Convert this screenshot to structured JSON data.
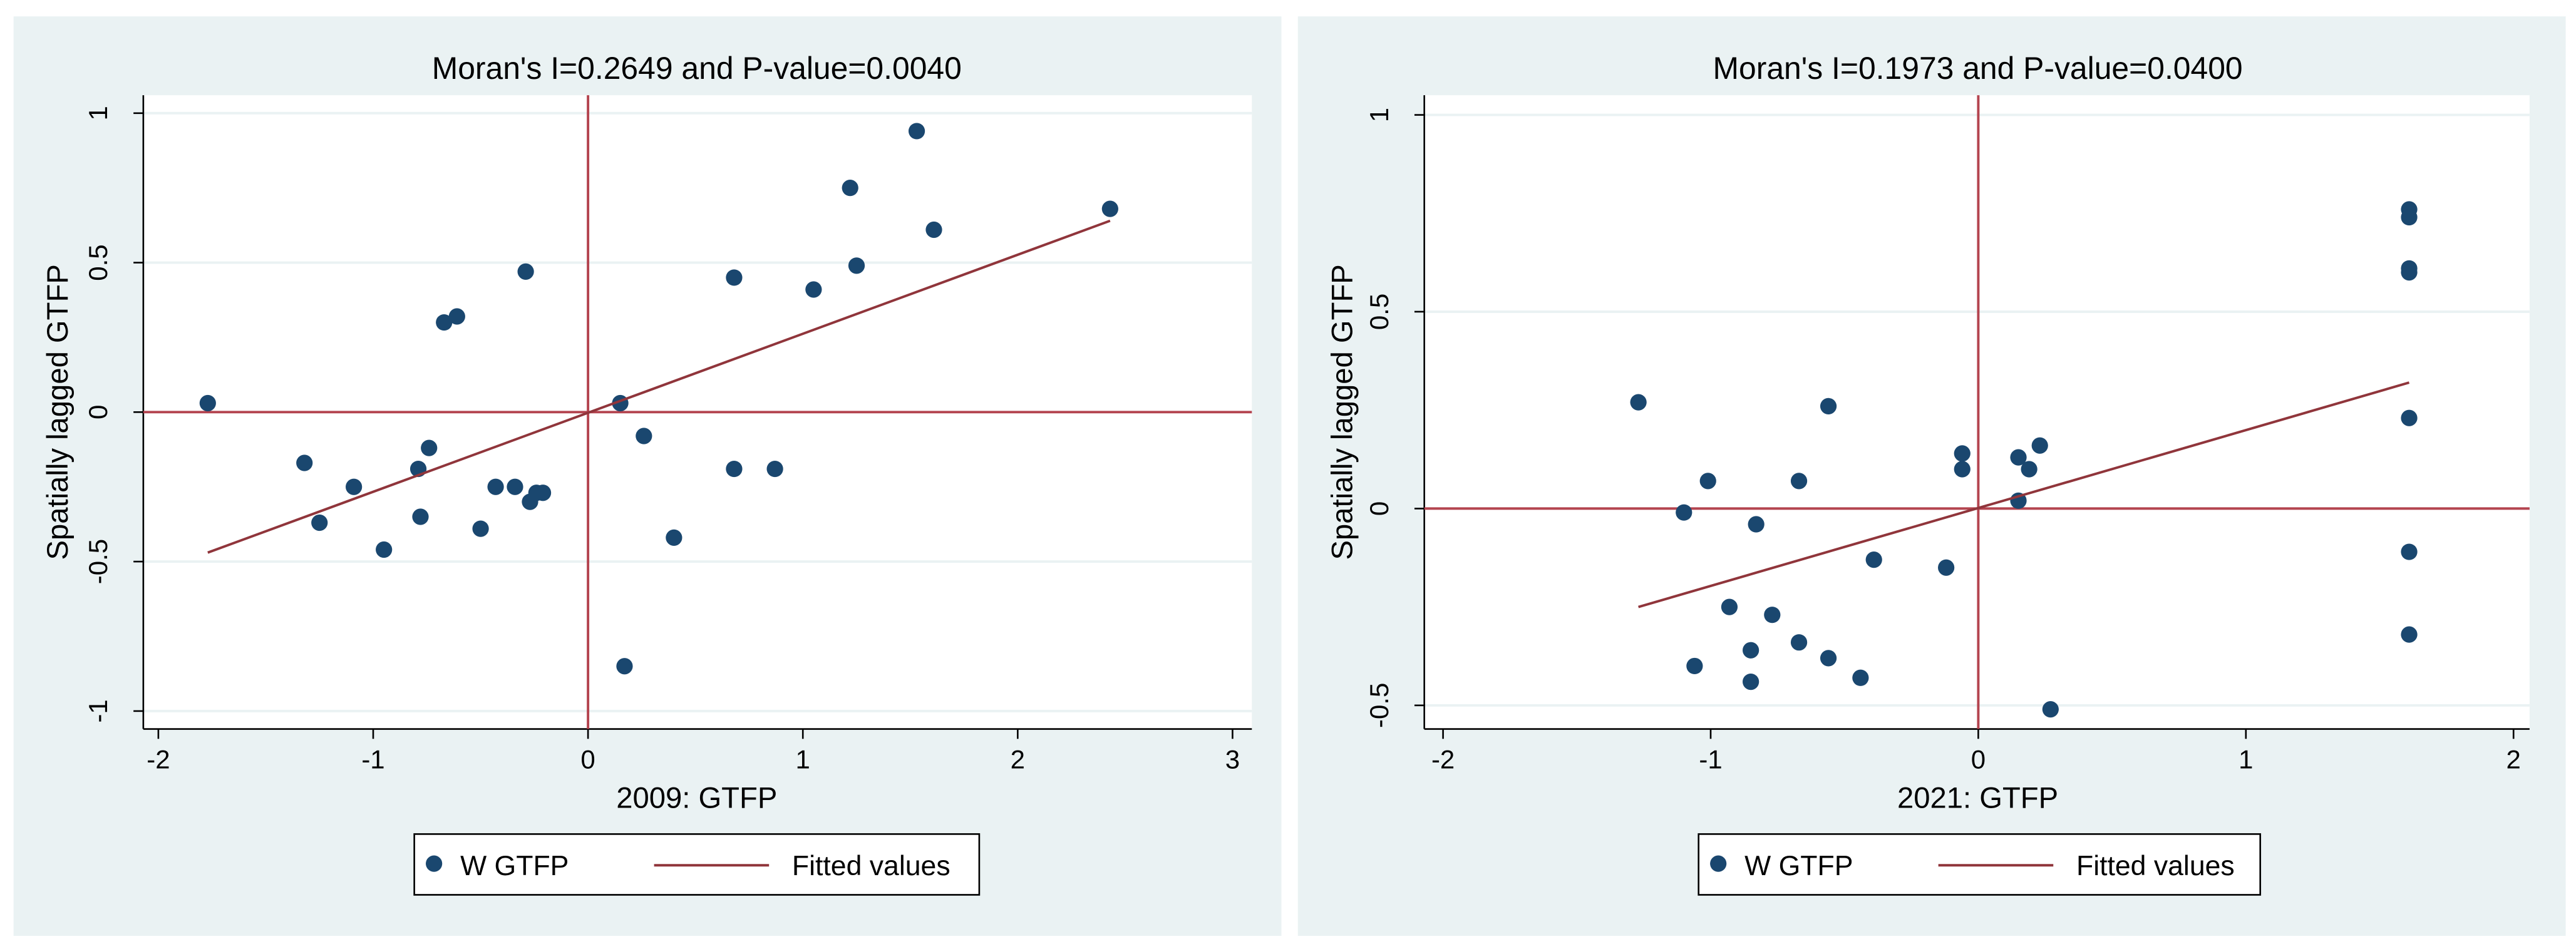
{
  "chart_data": [
    {
      "type": "scatter",
      "title": "Moran's I=0.2649 and P-value=0.0040",
      "x_label": "2009: GTFP",
      "y_label": "Spatially lagged GTFP",
      "xlim": [
        -2.07,
        3.09
      ],
      "ylim": [
        -1.06,
        1.06
      ],
      "xticks": [
        -2,
        -1,
        0,
        1,
        2,
        3
      ],
      "yticks": [
        -1,
        -0.5,
        0,
        0.5,
        1
      ],
      "grid": true,
      "series": [
        {
          "name": "W GTFP",
          "type": "scatter",
          "color": "#1a476f",
          "x": [
            -1.77,
            -1.32,
            -1.09,
            -1.25,
            -0.95,
            -0.74,
            -0.79,
            -0.78,
            -0.67,
            -0.61,
            -0.5,
            -0.43,
            -0.34,
            -0.29,
            -0.27,
            -0.24,
            -0.21,
            0.15,
            0.17,
            0.26,
            0.4,
            0.68,
            0.68,
            0.87,
            1.05,
            1.22,
            1.25,
            1.53,
            1.61,
            2.43
          ],
          "values": [
            0.03,
            -0.17,
            -0.25,
            -0.37,
            -0.46,
            -0.12,
            -0.19,
            -0.35,
            0.3,
            0.32,
            -0.39,
            -0.25,
            -0.25,
            0.47,
            -0.3,
            -0.27,
            -0.27,
            0.03,
            -0.85,
            -0.08,
            -0.42,
            0.45,
            -0.19,
            -0.19,
            0.41,
            0.75,
            0.49,
            0.94,
            0.61,
            0.68
          ]
        },
        {
          "name": "Fitted values",
          "type": "line",
          "color": "#90353b",
          "x": [
            -1.77,
            2.43
          ],
          "values": [
            -0.47,
            0.64
          ]
        }
      ]
    },
    {
      "type": "scatter",
      "title": "Moran's I=0.1973 and P-value=0.0400",
      "x_label": "2021: GTFP",
      "y_label": "Spatially lagged GTFP",
      "xlim": [
        -2.07,
        2.06
      ],
      "ylim": [
        -0.56,
        1.05
      ],
      "xticks": [
        -2,
        -1,
        0,
        1,
        2
      ],
      "yticks": [
        -0.5,
        0,
        0.5,
        1
      ],
      "grid": true,
      "series": [
        {
          "name": "W GTFP",
          "type": "scatter",
          "color": "#1a476f",
          "x": [
            -1.27,
            -1.1,
            -1.01,
            -1.06,
            -0.93,
            -0.85,
            -0.83,
            -0.85,
            -0.77,
            -0.67,
            -0.67,
            -0.56,
            -0.56,
            -0.44,
            -0.39,
            -0.12,
            -0.06,
            -0.06,
            0.15,
            0.19,
            0.23,
            0.15,
            0.27,
            1.61,
            1.61,
            1.61,
            1.61,
            1.61,
            1.61,
            1.61
          ],
          "values": [
            0.27,
            -0.01,
            0.07,
            -0.4,
            -0.25,
            -0.36,
            -0.04,
            -0.44,
            -0.27,
            0.07,
            -0.34,
            0.26,
            -0.38,
            -0.43,
            -0.13,
            -0.15,
            0.14,
            0.1,
            0.13,
            0.1,
            0.16,
            0.02,
            -0.51,
            0.76,
            0.74,
            0.61,
            0.6,
            0.23,
            -0.11,
            -0.32
          ]
        },
        {
          "name": "Fitted values",
          "type": "line",
          "color": "#90353b",
          "x": [
            -1.27,
            1.61
          ],
          "values": [
            -0.25,
            0.32
          ]
        }
      ]
    }
  ]
}
